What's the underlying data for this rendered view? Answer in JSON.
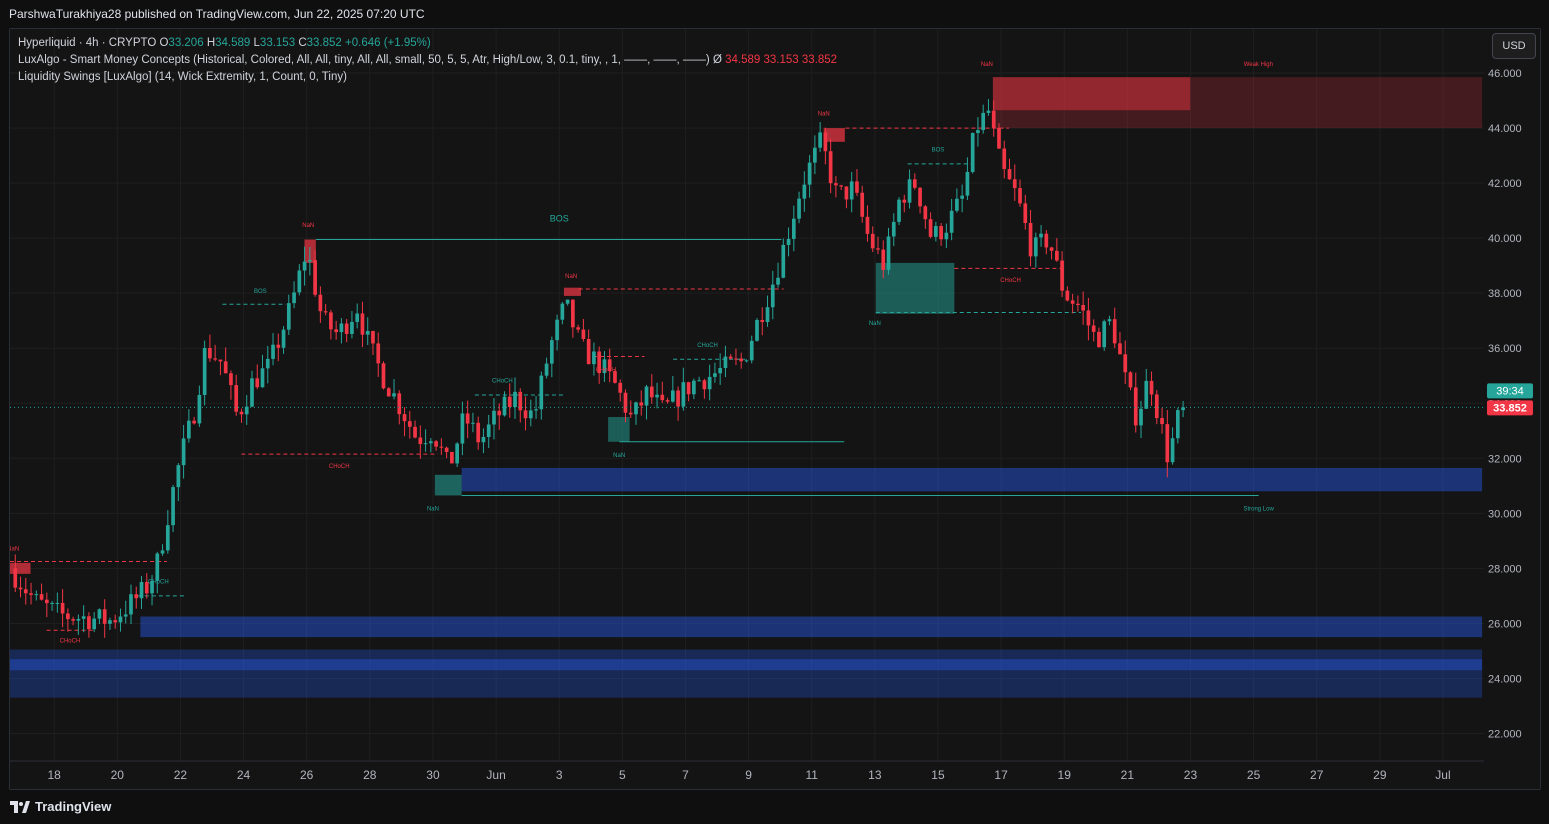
{
  "header": {
    "publish_text": "ParshwaTurakhiya28 published on TradingView.com, Jun 22, 2025 07:20 UTC"
  },
  "legend": {
    "symbol": "Hyperliquid · 4h · CRYPTO",
    "o_label": "O",
    "o_value": "33.206",
    "h_label": "H",
    "h_value": "34.589",
    "l_label": "L",
    "l_value": "33.153",
    "c_label": "C",
    "c_value": "33.852",
    "change": "+0.646 (+1.95%)",
    "indicator1": "LuxAlgo - Smart Money Concepts (Historical, Colored, All, All, tiny, All, All, small, 50, 5, 5, Atr, High/Low, 3, 0.1, tiny, , 1, ——, ——, ——)",
    "indicator1_symbol": "Ø",
    "indicator1_values": [
      "34.589",
      "33.153",
      "33.852"
    ],
    "indicator2": "Liquidity Swings [LuxAlgo] (14, Wick Extremity, 1, Count, 0, Tiny)"
  },
  "currency_button": "USD",
  "footer": {
    "brand": "TradingView"
  },
  "colors": {
    "up": "#26a69a",
    "down": "#f23645",
    "grid": "#1f1f1f",
    "axis_text": "#b2b5be",
    "supply_zone": "#f23645",
    "demand_zone": "#26a69a",
    "liquidity_zone": "#2962ff",
    "countdown_bg": "#26a69a",
    "price_bg": "#f23645"
  },
  "chart_data": {
    "type": "candlestick",
    "timeframe": "4h",
    "y_ticks": [
      "46.000",
      "44.000",
      "42.000",
      "40.000",
      "38.000",
      "36.000",
      "34.000",
      "32.000",
      "30.000",
      "28.000",
      "26.000",
      "24.000",
      "22.000"
    ],
    "y_tick_values": [
      46,
      44,
      42,
      40,
      38,
      36,
      34,
      32,
      30,
      28,
      26,
      24,
      22
    ],
    "x_ticks": [
      {
        "label": "18",
        "day": 18
      },
      {
        "label": "20",
        "day": 20
      },
      {
        "label": "22",
        "day": 22
      },
      {
        "label": "24",
        "day": 24
      },
      {
        "label": "26",
        "day": 26
      },
      {
        "label": "28",
        "day": 28
      },
      {
        "label": "30",
        "day": 30
      },
      {
        "label": "Jun",
        "day": 32
      },
      {
        "label": "3",
        "day": 34
      },
      {
        "label": "5",
        "day": 36
      },
      {
        "label": "7",
        "day": 38
      },
      {
        "label": "9",
        "day": 40
      },
      {
        "label": "11",
        "day": 42
      },
      {
        "label": "13",
        "day": 44
      },
      {
        "label": "15",
        "day": 46
      },
      {
        "label": "17",
        "day": 48
      },
      {
        "label": "19",
        "day": 50
      },
      {
        "label": "21",
        "day": 52
      },
      {
        "label": "23",
        "day": 54
      },
      {
        "label": "25",
        "day": 56
      },
      {
        "label": "27",
        "day": 58
      },
      {
        "label": "29",
        "day": 60
      },
      {
        "label": "Jul",
        "day": 62
      }
    ],
    "y_range": [
      21.0,
      47.6
    ],
    "day_range": [
      16.6,
      63.3
    ],
    "current_price": "33.852",
    "current_price_value": 33.852,
    "countdown": "39:34",
    "price_path": [
      [
        16.6,
        28.0
      ],
      [
        17.4,
        26.8
      ],
      [
        18.2,
        26.3
      ],
      [
        19.0,
        26.2
      ],
      [
        19.8,
        26.1
      ],
      [
        20.6,
        26.9
      ],
      [
        21.0,
        27.4
      ],
      [
        21.3,
        28.3
      ],
      [
        21.7,
        30.5
      ],
      [
        22.0,
        32.0
      ],
      [
        22.4,
        33.5
      ],
      [
        22.8,
        36.0
      ],
      [
        23.3,
        35.5
      ],
      [
        23.8,
        33.5
      ],
      [
        24.3,
        34.8
      ],
      [
        24.8,
        35.3
      ],
      [
        25.5,
        37.5
      ],
      [
        26.0,
        39.6
      ],
      [
        26.5,
        37.0
      ],
      [
        27.0,
        36.5
      ],
      [
        27.6,
        37.5
      ],
      [
        28.0,
        36.0
      ],
      [
        28.5,
        34.8
      ],
      [
        29.0,
        33.8
      ],
      [
        29.5,
        32.7
      ],
      [
        30.0,
        33.0
      ],
      [
        30.5,
        31.6
      ],
      [
        31.0,
        33.5
      ],
      [
        31.5,
        32.6
      ],
      [
        32.0,
        33.5
      ],
      [
        32.6,
        34.2
      ],
      [
        33.2,
        33.5
      ],
      [
        33.7,
        36.0
      ],
      [
        34.2,
        37.6
      ],
      [
        34.7,
        36.0
      ],
      [
        35.3,
        35.4
      ],
      [
        35.8,
        34.6
      ],
      [
        36.3,
        33.4
      ],
      [
        36.8,
        34.4
      ],
      [
        37.3,
        33.7
      ],
      [
        37.8,
        34.3
      ],
      [
        38.3,
        34.8
      ],
      [
        38.8,
        35.0
      ],
      [
        39.3,
        35.3
      ],
      [
        39.8,
        35.5
      ],
      [
        40.3,
        37.0
      ],
      [
        40.8,
        38.5
      ],
      [
        41.2,
        40.0
      ],
      [
        41.7,
        42.0
      ],
      [
        42.3,
        43.5
      ],
      [
        42.8,
        41.5
      ],
      [
        43.3,
        41.8
      ],
      [
        43.8,
        40.0
      ],
      [
        44.3,
        39.0
      ],
      [
        44.8,
        41.5
      ],
      [
        45.3,
        42.0
      ],
      [
        45.8,
        40.0
      ],
      [
        46.3,
        40.5
      ],
      [
        46.8,
        41.5
      ],
      [
        47.2,
        44.0
      ],
      [
        47.6,
        44.6
      ],
      [
        48.0,
        42.5
      ],
      [
        48.5,
        41.5
      ],
      [
        49.0,
        39.5
      ],
      [
        49.5,
        40.0
      ],
      [
        50.0,
        38.0
      ],
      [
        50.5,
        37.5
      ],
      [
        51.0,
        36.3
      ],
      [
        51.5,
        37.0
      ],
      [
        52.0,
        34.5
      ],
      [
        52.3,
        33.5
      ],
      [
        52.7,
        35.0
      ],
      [
        53.0,
        33.5
      ],
      [
        53.3,
        32.0
      ],
      [
        53.6,
        33.4
      ],
      [
        53.8,
        33.852
      ]
    ],
    "zones": [
      {
        "kind": "supply",
        "d0": 47.74,
        "d1": 53.99,
        "lo": 44.65,
        "hi": 45.85,
        "opacity": 0.45
      },
      {
        "kind": "supply",
        "d0": 47.74,
        "d1": 63.24,
        "lo": 44.0,
        "hi": 45.85,
        "opacity": 0.22
      },
      {
        "kind": "supply",
        "d0": 42.38,
        "d1": 43.05,
        "lo": 43.5,
        "hi": 44.0,
        "opacity": 0.7
      },
      {
        "kind": "supply",
        "d0": 25.93,
        "d1": 26.29,
        "lo": 39.1,
        "hi": 39.95,
        "opacity": 0.7
      },
      {
        "kind": "supply",
        "d0": 34.15,
        "d1": 34.69,
        "lo": 37.9,
        "hi": 38.2,
        "opacity": 0.7
      },
      {
        "kind": "supply",
        "d0": 16.6,
        "d1": 17.25,
        "lo": 27.8,
        "hi": 28.2,
        "opacity": 0.7
      },
      {
        "kind": "demand",
        "d0": 44.03,
        "d1": 46.52,
        "lo": 37.25,
        "hi": 39.1,
        "opacity": 0.5
      },
      {
        "kind": "demand",
        "d0": 35.55,
        "d1": 36.23,
        "lo": 32.6,
        "hi": 33.5,
        "opacity": 0.5
      },
      {
        "kind": "demand",
        "d0": 30.06,
        "d1": 30.91,
        "lo": 30.65,
        "hi": 31.4,
        "opacity": 0.55
      },
      {
        "kind": "liquidity",
        "d0": 30.91,
        "d1": 63.24,
        "lo": 30.8,
        "hi": 31.65,
        "opacity": 0.42
      },
      {
        "kind": "liquidity",
        "d0": 20.73,
        "d1": 63.24,
        "lo": 25.5,
        "hi": 26.25,
        "opacity": 0.42
      },
      {
        "kind": "liquidity",
        "d0": 16.6,
        "d1": 63.24,
        "lo": 23.3,
        "hi": 25.05,
        "opacity": 0.28
      },
      {
        "kind": "liquidity",
        "d0": 16.6,
        "d1": 63.24,
        "lo": 24.3,
        "hi": 24.7,
        "opacity": 0.35
      }
    ],
    "structure_lines": [
      {
        "d0": 26.29,
        "d1": 41.04,
        "y": 39.95,
        "color": "up",
        "dash": false
      },
      {
        "d0": 30.91,
        "d1": 56.16,
        "y": 30.65,
        "color": "up",
        "dash": false
      },
      {
        "d0": 35.91,
        "d1": 43.03,
        "y": 32.6,
        "color": "up",
        "dash": false
      },
      {
        "d0": 23.33,
        "d1": 25.34,
        "y": 37.6,
        "color": "up",
        "dash": true
      },
      {
        "d0": 31.33,
        "d1": 34.21,
        "y": 34.3,
        "color": "up",
        "dash": true
      },
      {
        "d0": 37.61,
        "d1": 39.9,
        "y": 35.6,
        "color": "up",
        "dash": true
      },
      {
        "d0": 45.04,
        "d1": 47.11,
        "y": 42.7,
        "color": "up",
        "dash": true
      },
      {
        "d0": 20.65,
        "d1": 22.19,
        "y": 27.0,
        "color": "up",
        "dash": true
      },
      {
        "d0": 44.03,
        "d1": 50.53,
        "y": 37.3,
        "color": "up",
        "dash": true
      },
      {
        "d0": 23.93,
        "d1": 30.15,
        "y": 32.15,
        "color": "down",
        "dash": true
      },
      {
        "d0": 34.62,
        "d1": 41.11,
        "y": 38.15,
        "color": "down",
        "dash": true
      },
      {
        "d0": 35.07,
        "d1": 36.7,
        "y": 35.7,
        "color": "down",
        "dash": true
      },
      {
        "d0": 43.07,
        "d1": 48.25,
        "y": 44.0,
        "color": "down",
        "dash": true
      },
      {
        "d0": 46.52,
        "d1": 49.99,
        "y": 38.9,
        "color": "down",
        "dash": true
      },
      {
        "d0": 16.6,
        "d1": 21.57,
        "y": 28.25,
        "color": "down",
        "dash": true
      },
      {
        "d0": 17.76,
        "d1": 19.24,
        "y": 25.75,
        "color": "down",
        "dash": true
      }
    ],
    "labels": [
      {
        "text": "BOS",
        "day": 34.0,
        "price": 40.6,
        "color": "up",
        "size": 9
      },
      {
        "text": "BOS",
        "day": 24.53,
        "price": 38.0,
        "color": "up",
        "size": 6
      },
      {
        "text": "BOS",
        "day": 46.0,
        "price": 43.15,
        "color": "up",
        "size": 6
      },
      {
        "text": "CHoCH",
        "day": 32.2,
        "price": 34.75,
        "color": "up",
        "size": 6
      },
      {
        "text": "CHoCH",
        "day": 38.7,
        "price": 36.05,
        "color": "up",
        "size": 6
      },
      {
        "text": "CHoCH",
        "day": 21.3,
        "price": 27.45,
        "color": "up",
        "size": 6
      },
      {
        "text": "CHoCH",
        "day": 27.03,
        "price": 31.65,
        "color": "down",
        "size": 6
      },
      {
        "text": "CHoCH",
        "day": 35.48,
        "price": 35.15,
        "color": "down",
        "size": 6
      },
      {
        "text": "CHoCH",
        "day": 48.3,
        "price": 38.4,
        "color": "down",
        "size": 6
      },
      {
        "text": "CHoCH",
        "day": 18.5,
        "price": 25.3,
        "color": "down",
        "size": 6
      },
      {
        "text": "NaN",
        "day": 26.05,
        "price": 40.4,
        "color": "down",
        "size": 6
      },
      {
        "text": "NaN",
        "day": 34.38,
        "price": 38.55,
        "color": "down",
        "size": 6
      },
      {
        "text": "NaN",
        "day": 42.38,
        "price": 44.45,
        "color": "down",
        "size": 6
      },
      {
        "text": "NaN",
        "day": 47.55,
        "price": 46.25,
        "color": "down",
        "size": 6
      },
      {
        "text": "NaN",
        "day": 16.7,
        "price": 28.65,
        "color": "down",
        "size": 6
      },
      {
        "text": "NaN",
        "day": 44.0,
        "price": 36.85,
        "color": "up",
        "size": 6
      },
      {
        "text": "NaN",
        "day": 35.9,
        "price": 32.05,
        "color": "up",
        "size": 6
      },
      {
        "text": "NaN",
        "day": 30.0,
        "price": 30.1,
        "color": "up",
        "size": 6
      },
      {
        "text": "Weak High",
        "day": 56.15,
        "price": 46.25,
        "color": "down",
        "size": 6
      },
      {
        "text": "Strong Low",
        "day": 56.16,
        "price": 30.1,
        "color": "up",
        "size": 6
      }
    ]
  }
}
